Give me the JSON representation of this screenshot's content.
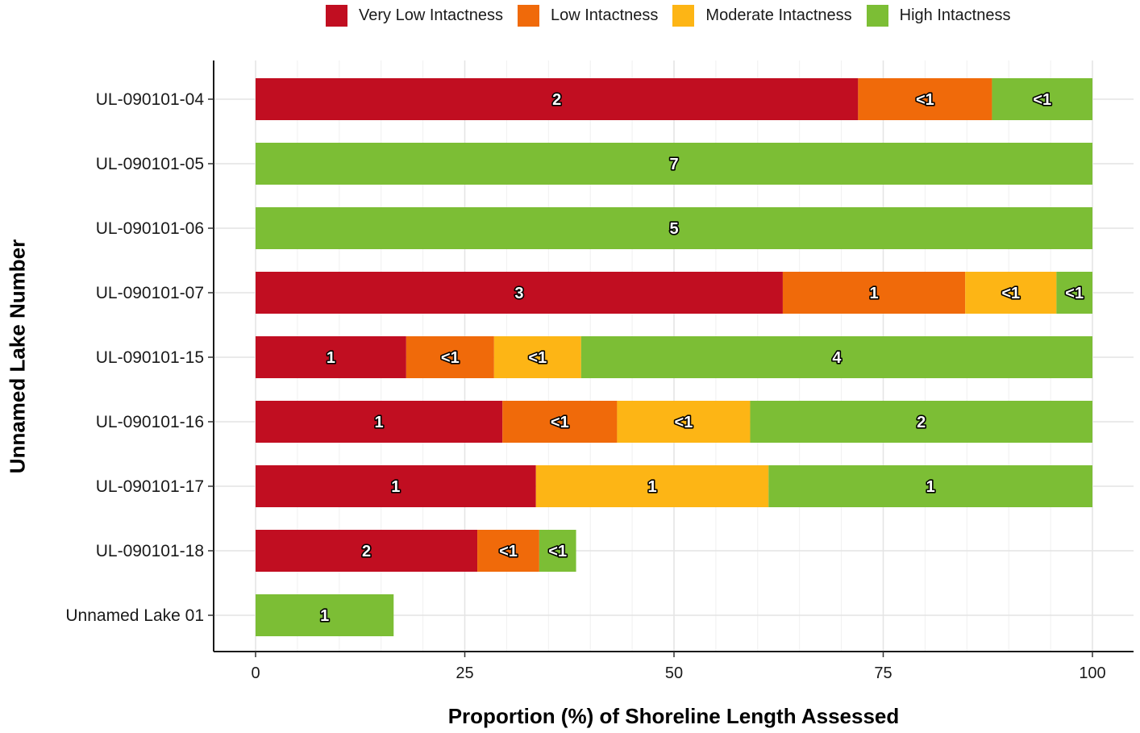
{
  "chart_data": {
    "type": "bar",
    "orientation": "horizontal",
    "stacked": true,
    "xlabel": "Proportion (%) of Shoreline Length Assessed",
    "ylabel": "Unnamed Lake Number",
    "xlim": [
      0,
      100
    ],
    "xticks": [
      "0",
      "25",
      "50",
      "75",
      "100"
    ],
    "grid": true,
    "legend_position": "top",
    "categories": [
      "UL-090101-04",
      "UL-090101-05",
      "UL-090101-06",
      "UL-090101-07",
      "UL-090101-15",
      "UL-090101-16",
      "UL-090101-17",
      "UL-090101-18",
      "Unnamed Lake 01"
    ],
    "series": [
      {
        "name": "Very Low Intactness",
        "color": "#C10E21",
        "values": [
          72,
          0,
          0,
          63,
          18,
          29.5,
          33.5,
          26.5,
          0
        ],
        "labels": [
          "2",
          "",
          "",
          "3",
          "1",
          "1",
          "1",
          "2",
          ""
        ]
      },
      {
        "name": "Low Intactness",
        "color": "#F06A0A",
        "values": [
          16,
          0,
          0,
          21.8,
          10.5,
          13.7,
          0,
          7.4,
          0
        ],
        "labels": [
          "<1",
          "",
          "",
          "1",
          "<1",
          "<1",
          "",
          "<1",
          ""
        ]
      },
      {
        "name": "Moderate Intactness",
        "color": "#FDB515",
        "values": [
          0,
          0,
          0,
          10.9,
          10.4,
          15.9,
          27.8,
          0,
          0
        ],
        "labels": [
          "",
          "",
          "",
          "<1",
          "<1",
          "<1",
          "1",
          "",
          ""
        ]
      },
      {
        "name": "High Intactness",
        "color": "#7CBE35",
        "values": [
          12,
          100,
          100,
          4.3,
          61.1,
          40.9,
          38.7,
          4.4,
          16.5
        ],
        "labels": [
          "<1",
          "7",
          "5",
          "<1",
          "4",
          "2",
          "1",
          "<1",
          "1"
        ]
      }
    ]
  }
}
